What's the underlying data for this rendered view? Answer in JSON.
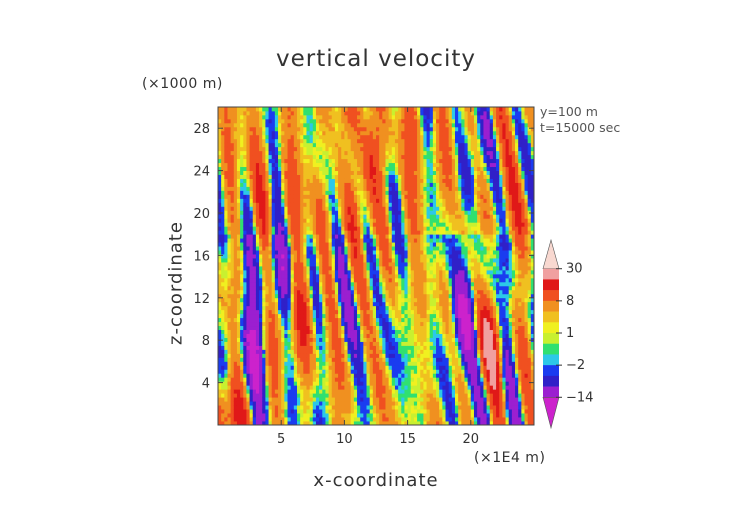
{
  "chart_data": {
    "type": "heatmap",
    "title": "vertical velocity",
    "xlabel": "x-coordinate",
    "ylabel": "z-coordinate",
    "x_unit_label": "(×1E4 m)",
    "y_unit_label": "(×1000 m)",
    "annotations": [
      "y=100  m",
      "t=15000 sec"
    ],
    "xlim": [
      0,
      25
    ],
    "ylim": [
      0,
      30
    ],
    "x_ticks": [
      {
        "value": 5,
        "label": "5"
      },
      {
        "value": 10,
        "label": "10"
      },
      {
        "value": 15,
        "label": "15"
      },
      {
        "value": 20,
        "label": "20"
      }
    ],
    "y_ticks": [
      {
        "value": 4,
        "label": "4"
      },
      {
        "value": 8,
        "label": "8"
      },
      {
        "value": 12,
        "label": "12"
      },
      {
        "value": 16,
        "label": "16"
      },
      {
        "value": 20,
        "label": "20"
      },
      {
        "value": 24,
        "label": "24"
      },
      {
        "value": 28,
        "label": "28"
      }
    ],
    "colorbar": {
      "levels": [
        {
          "value": -50,
          "color": "#cc22cc"
        },
        {
          "value": -14,
          "color": "#9b1fd0"
        },
        {
          "value": -8,
          "color": "#3020c8"
        },
        {
          "value": -4,
          "color": "#1a3cf0"
        },
        {
          "value": -2,
          "color": "#2cc8e8"
        },
        {
          "value": -1,
          "color": "#30e070"
        },
        {
          "value": 0,
          "color": "#c8f030"
        },
        {
          "value": 1,
          "color": "#f0f020"
        },
        {
          "value": 2,
          "color": "#f0c020"
        },
        {
          "value": 4,
          "color": "#f09020"
        },
        {
          "value": 8,
          "color": "#f05020"
        },
        {
          "value": 14,
          "color": "#e01818"
        },
        {
          "value": 20,
          "color": "#f0a0a0"
        },
        {
          "value": 30,
          "color": "#f8d8d0"
        }
      ],
      "labels": [
        {
          "value": 30,
          "label": "30"
        },
        {
          "value": 8,
          "label": "8"
        },
        {
          "value": 1,
          "label": "1"
        },
        {
          "value": -2,
          "label": "−2"
        },
        {
          "value": -14,
          "label": "−14"
        }
      ]
    },
    "field_description_note": "Turbulent vertical-velocity field; strong downdrafts (blue) near x≈2.5, 4, 19–20 (×1E4 m); updrafts (red/orange) concentrated at upper levels and near x≈21.",
    "features": [
      {
        "x": 2.3,
        "z": 7,
        "sign": -1,
        "amp": 10
      },
      {
        "x": 4.0,
        "z": 13,
        "sign": -1,
        "amp": 8
      },
      {
        "x": 19.5,
        "z": 10,
        "sign": -1,
        "amp": 14
      },
      {
        "x": 20.0,
        "z": 24,
        "sign": -1,
        "amp": 10
      },
      {
        "x": 21.5,
        "z": 8,
        "sign": 1,
        "amp": 12
      },
      {
        "x": 6.5,
        "z": 10,
        "sign": 1,
        "amp": 10
      },
      {
        "x": 12.0,
        "z": 24,
        "sign": 1,
        "amp": 8
      },
      {
        "x": 1.0,
        "z": 1,
        "sign": 1,
        "amp": 14
      }
    ]
  }
}
